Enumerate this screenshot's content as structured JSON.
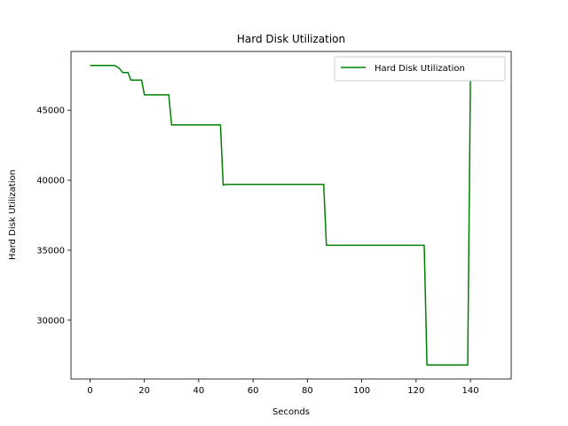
{
  "chart_data": {
    "type": "line",
    "title": "Hard Disk Utilization",
    "xlabel": "Seconds",
    "ylabel": "Hard Disk Utilization",
    "xlim": [
      -7,
      155
    ],
    "ylim": [
      25800,
      49200
    ],
    "xticks": [
      0,
      20,
      40,
      60,
      80,
      100,
      120,
      140
    ],
    "yticks": [
      30000,
      35000,
      40000,
      45000
    ],
    "grid": false,
    "legend_position": "upper right",
    "series": [
      {
        "name": "Hard Disk Utilization",
        "color": "#008000",
        "points": [
          [
            0,
            48200
          ],
          [
            9,
            48200
          ],
          [
            10,
            48100
          ],
          [
            11,
            47950
          ],
          [
            12,
            47700
          ],
          [
            14,
            47700
          ],
          [
            15,
            47150
          ],
          [
            19,
            47150
          ],
          [
            20,
            46100
          ],
          [
            29,
            46100
          ],
          [
            30,
            43950
          ],
          [
            48,
            43950
          ],
          [
            49,
            39650
          ],
          [
            50,
            39700
          ],
          [
            86,
            39700
          ],
          [
            87,
            35350
          ],
          [
            123,
            35350
          ],
          [
            124,
            26800
          ],
          [
            139,
            26800
          ],
          [
            140,
            47500
          ]
        ]
      }
    ]
  }
}
